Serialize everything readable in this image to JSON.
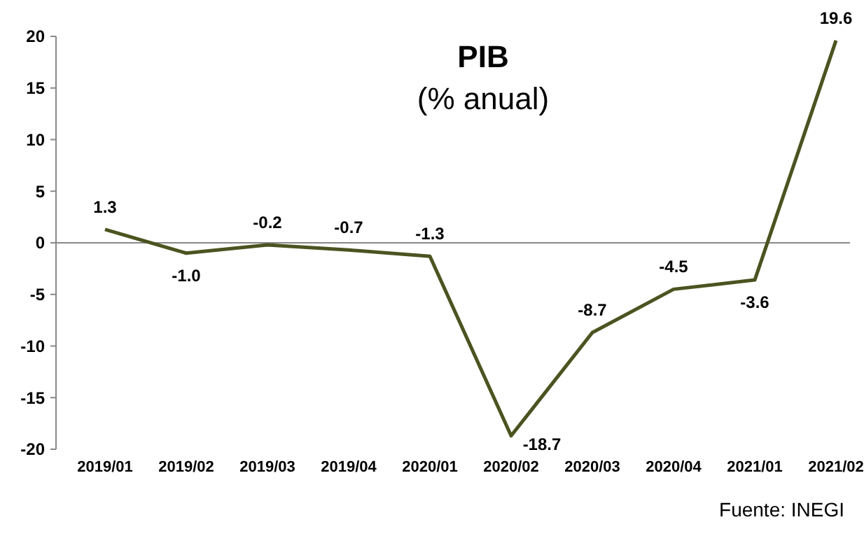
{
  "chart_data": {
    "type": "line",
    "title": "PIB",
    "subtitle": "(% anual)",
    "categories": [
      "2019/01",
      "2019/02",
      "2019/03",
      "2019/04",
      "2020/01",
      "2020/02",
      "2020/03",
      "2020/04",
      "2021/01",
      "2021/02"
    ],
    "series": [
      {
        "color": "#4b5320",
        "values": [
          1.3,
          -1.0,
          -0.2,
          -0.7,
          -1.3,
          -18.7,
          -8.7,
          -4.5,
          -3.6,
          19.6
        ],
        "value_labels": [
          "1.3",
          "-1.0",
          "-0.2",
          "-0.7",
          "-1.3",
          "-18.7",
          "-8.7",
          "-4.5",
          "-3.6",
          "19.6"
        ]
      }
    ],
    "ylim": [
      -20,
      20
    ],
    "yticks": [
      -20,
      -15,
      -10,
      -5,
      0,
      5,
      10,
      15,
      20
    ],
    "marker": "none",
    "line_style": "solid",
    "annotations": [
      "Fuente: INEGI"
    ]
  }
}
